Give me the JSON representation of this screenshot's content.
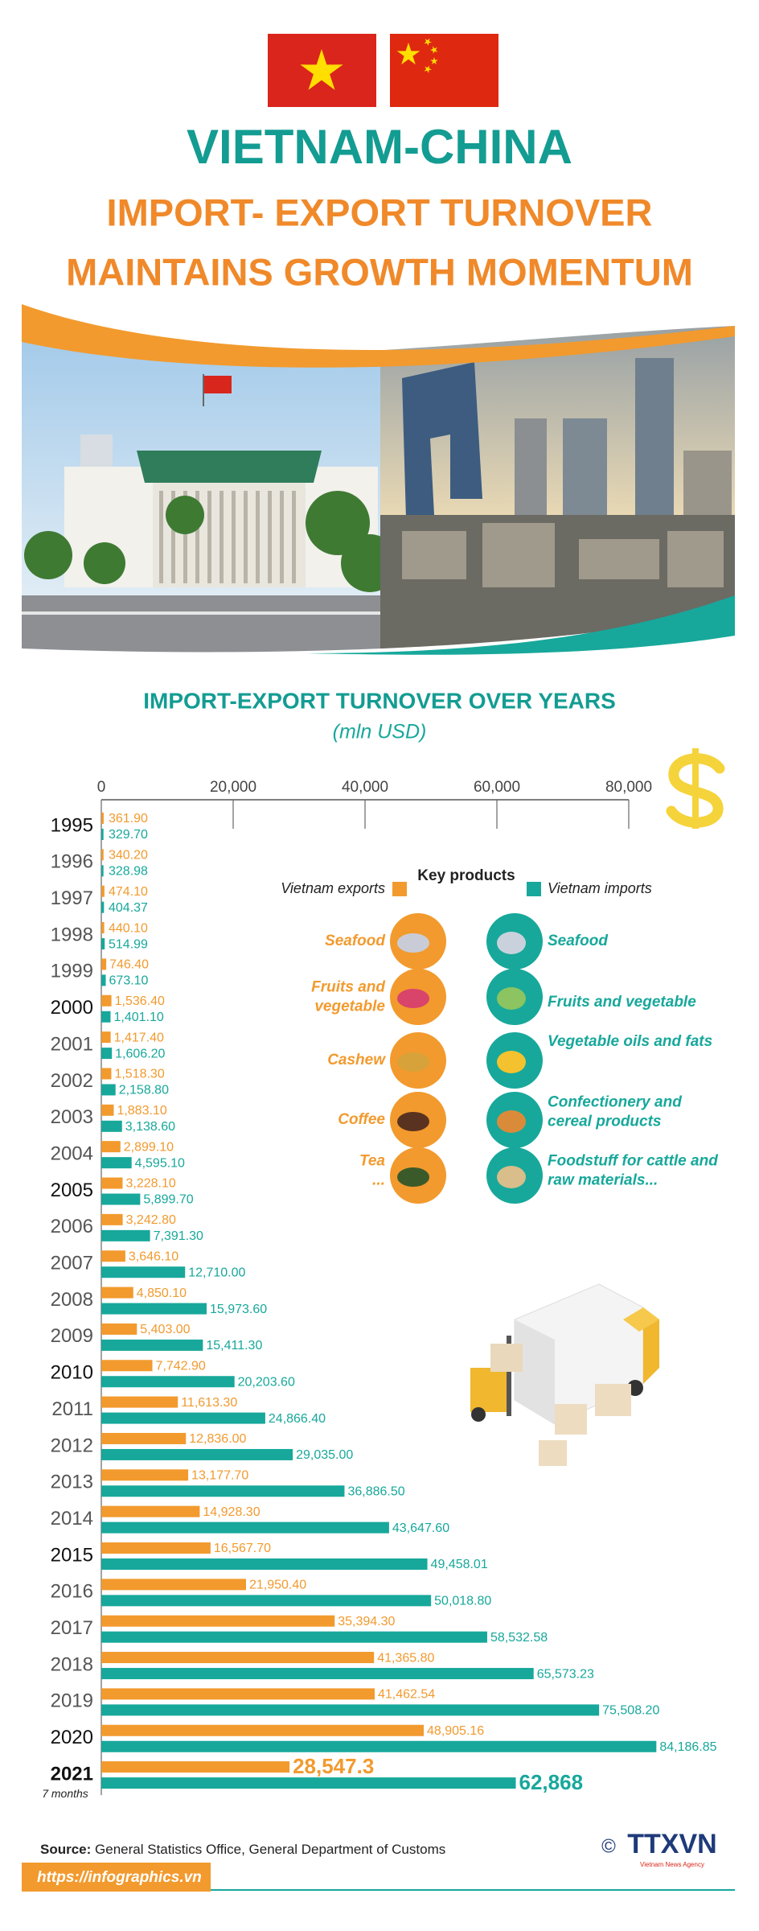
{
  "header": {
    "title": "VIETNAM-CHINA",
    "subtitle_line1": "IMPORT- EXPORT TURNOVER",
    "subtitle_line2": "MAINTAINS GROWTH MOMENTUM"
  },
  "chart_data": {
    "type": "bar",
    "orientation": "horizontal",
    "title": "IMPORT-EXPORT TURNOVER OVER YEARS",
    "subtitle": "(mln USD)",
    "categories": [
      "1995",
      "1996",
      "1997",
      "1998",
      "1999",
      "2000",
      "2001",
      "2002",
      "2003",
      "2004",
      "2005",
      "2006",
      "2007",
      "2008",
      "2009",
      "2010",
      "2011",
      "2012",
      "2013",
      "2014",
      "2015",
      "2016",
      "2017",
      "2018",
      "2019",
      "2020",
      "2021"
    ],
    "category_note": "7 months",
    "series": [
      {
        "name": "Vietnam exports",
        "color": "#f29a2e",
        "values": [
          361.9,
          340.2,
          474.1,
          440.1,
          746.4,
          1536.4,
          1417.4,
          1518.3,
          1883.1,
          2899.1,
          3228.1,
          3242.8,
          3646.1,
          4850.1,
          5403,
          7742.9,
          11613.3,
          12836,
          13177.7,
          14928.3,
          16567.7,
          21950.4,
          35394.3,
          41365.8,
          41462.54,
          48905.16,
          28547.3
        ],
        "value_labels": [
          "361.90",
          "340.20",
          "474.10",
          "440.10",
          "746.40",
          "1,536.40",
          "1,417.40",
          "1,518.30",
          "1,883.10",
          "2,899.10",
          "3,228.10",
          "3,242.80",
          "3,646.10",
          "4,850.10",
          "5,403.00",
          "7,742.90",
          "11,613.30",
          "12,836.00",
          "13,177.70",
          "14,928.30",
          "16,567.70",
          "21,950.40",
          "35,394.30",
          "41,365.80",
          "41,462.54",
          "48,905.16",
          "28,547.3"
        ]
      },
      {
        "name": "Vietnam imports",
        "color": "#17a89b",
        "values": [
          329.7,
          328.98,
          404.37,
          514.99,
          673.1,
          1401.1,
          1606.2,
          2158.8,
          3138.6,
          4595.1,
          5899.7,
          7391.3,
          12710,
          15973.6,
          15411.3,
          20203.6,
          24866.4,
          29035,
          36886.5,
          43647.6,
          49458.01,
          50018.8,
          58532.58,
          65573.23,
          75508.2,
          84186.85,
          62868
        ],
        "value_labels": [
          "329.70",
          "328.98",
          "404.37",
          "514.99",
          "673.10",
          "1,401.10",
          "1,606.20",
          "2,158.80",
          "3,138.60",
          "4,595.10",
          "5,899.70",
          "7,391.30",
          "12,710.00",
          "15,973.60",
          "15,411.30",
          "20,203.60",
          "24,866.40",
          "29,035.00",
          "36,886.50",
          "43,647.60",
          "49,458.01",
          "50,018.80",
          "58,532.58",
          "65,573.23",
          "75,508.20",
          "84,186.85",
          "62,868"
        ]
      }
    ],
    "xlim": [
      0,
      80000
    ],
    "xticks": [
      0,
      {
        "value": 20000,
        "label": "20,000"
      },
      {
        "value": 40000,
        "label": "40,000"
      },
      {
        "value": 60000,
        "label": "60,000"
      },
      {
        "value": 80000,
        "label": "80,000"
      }
    ]
  },
  "key_products": {
    "title": "Key products",
    "exports": [
      "Seafood",
      "Fruits and\nvegetable",
      "Cashew",
      "Coffee",
      "Tea\n..."
    ],
    "imports": [
      "Seafood",
      "Fruits and vegetable",
      "Vegetable oils and fats",
      "Confectionery and\ncereal products",
      "Foodstuff for cattle and\nraw materials..."
    ]
  },
  "footer": {
    "source_label": "Source:",
    "source": "General Statistics Office, General Department of Customs",
    "url": "https://infographics.vn",
    "copyright": "©",
    "logo": "TTXVN",
    "logo_sub": "Vietnam News Agency"
  }
}
